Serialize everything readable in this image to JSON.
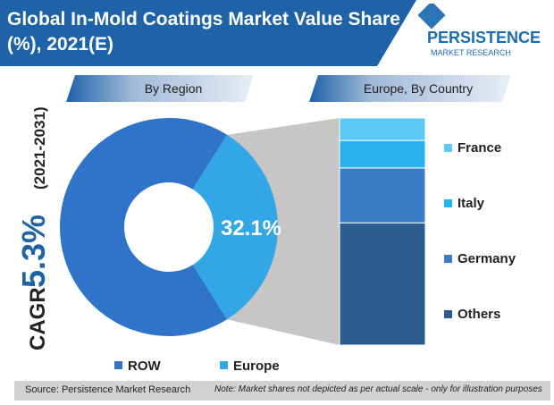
{
  "title": "Global In-Mold Coatings Market Value Share (%), 2021(E)",
  "logo": {
    "line1": "PERSISTENCE",
    "line2": "MARKET RESEARCH"
  },
  "cagr": {
    "label": "CAGR",
    "value": "5.3%",
    "period": "(2021-2031)"
  },
  "footer": {
    "source": "Source: Persistence Market Research",
    "note": "Note: Market shares not depicted as per actual scale - only for illustration purposes"
  },
  "colors": {
    "title_bg": "#1e62a8",
    "row": "#2f74c8",
    "europe": "#33a6e6",
    "france": "#5bc8f5",
    "italy": "#27b2ee",
    "germany": "#3a7dc4",
    "others": "#2b5d91",
    "footer_bg": "#d2d2d2"
  },
  "chart_data": [
    {
      "type": "pie",
      "subtitle": "By Region",
      "categories": [
        "ROW",
        "Europe"
      ],
      "values": [
        67.9,
        32.1
      ],
      "data_labels": [
        "",
        "32.1%"
      ],
      "legend": "bottom",
      "donut": true
    },
    {
      "type": "bar",
      "subtitle": "Europe, By Country",
      "stacked": true,
      "categories": [
        "Others",
        "Germany",
        "Italy",
        "France"
      ],
      "values": [
        49,
        22,
        11,
        9
      ],
      "legend": "right"
    }
  ]
}
